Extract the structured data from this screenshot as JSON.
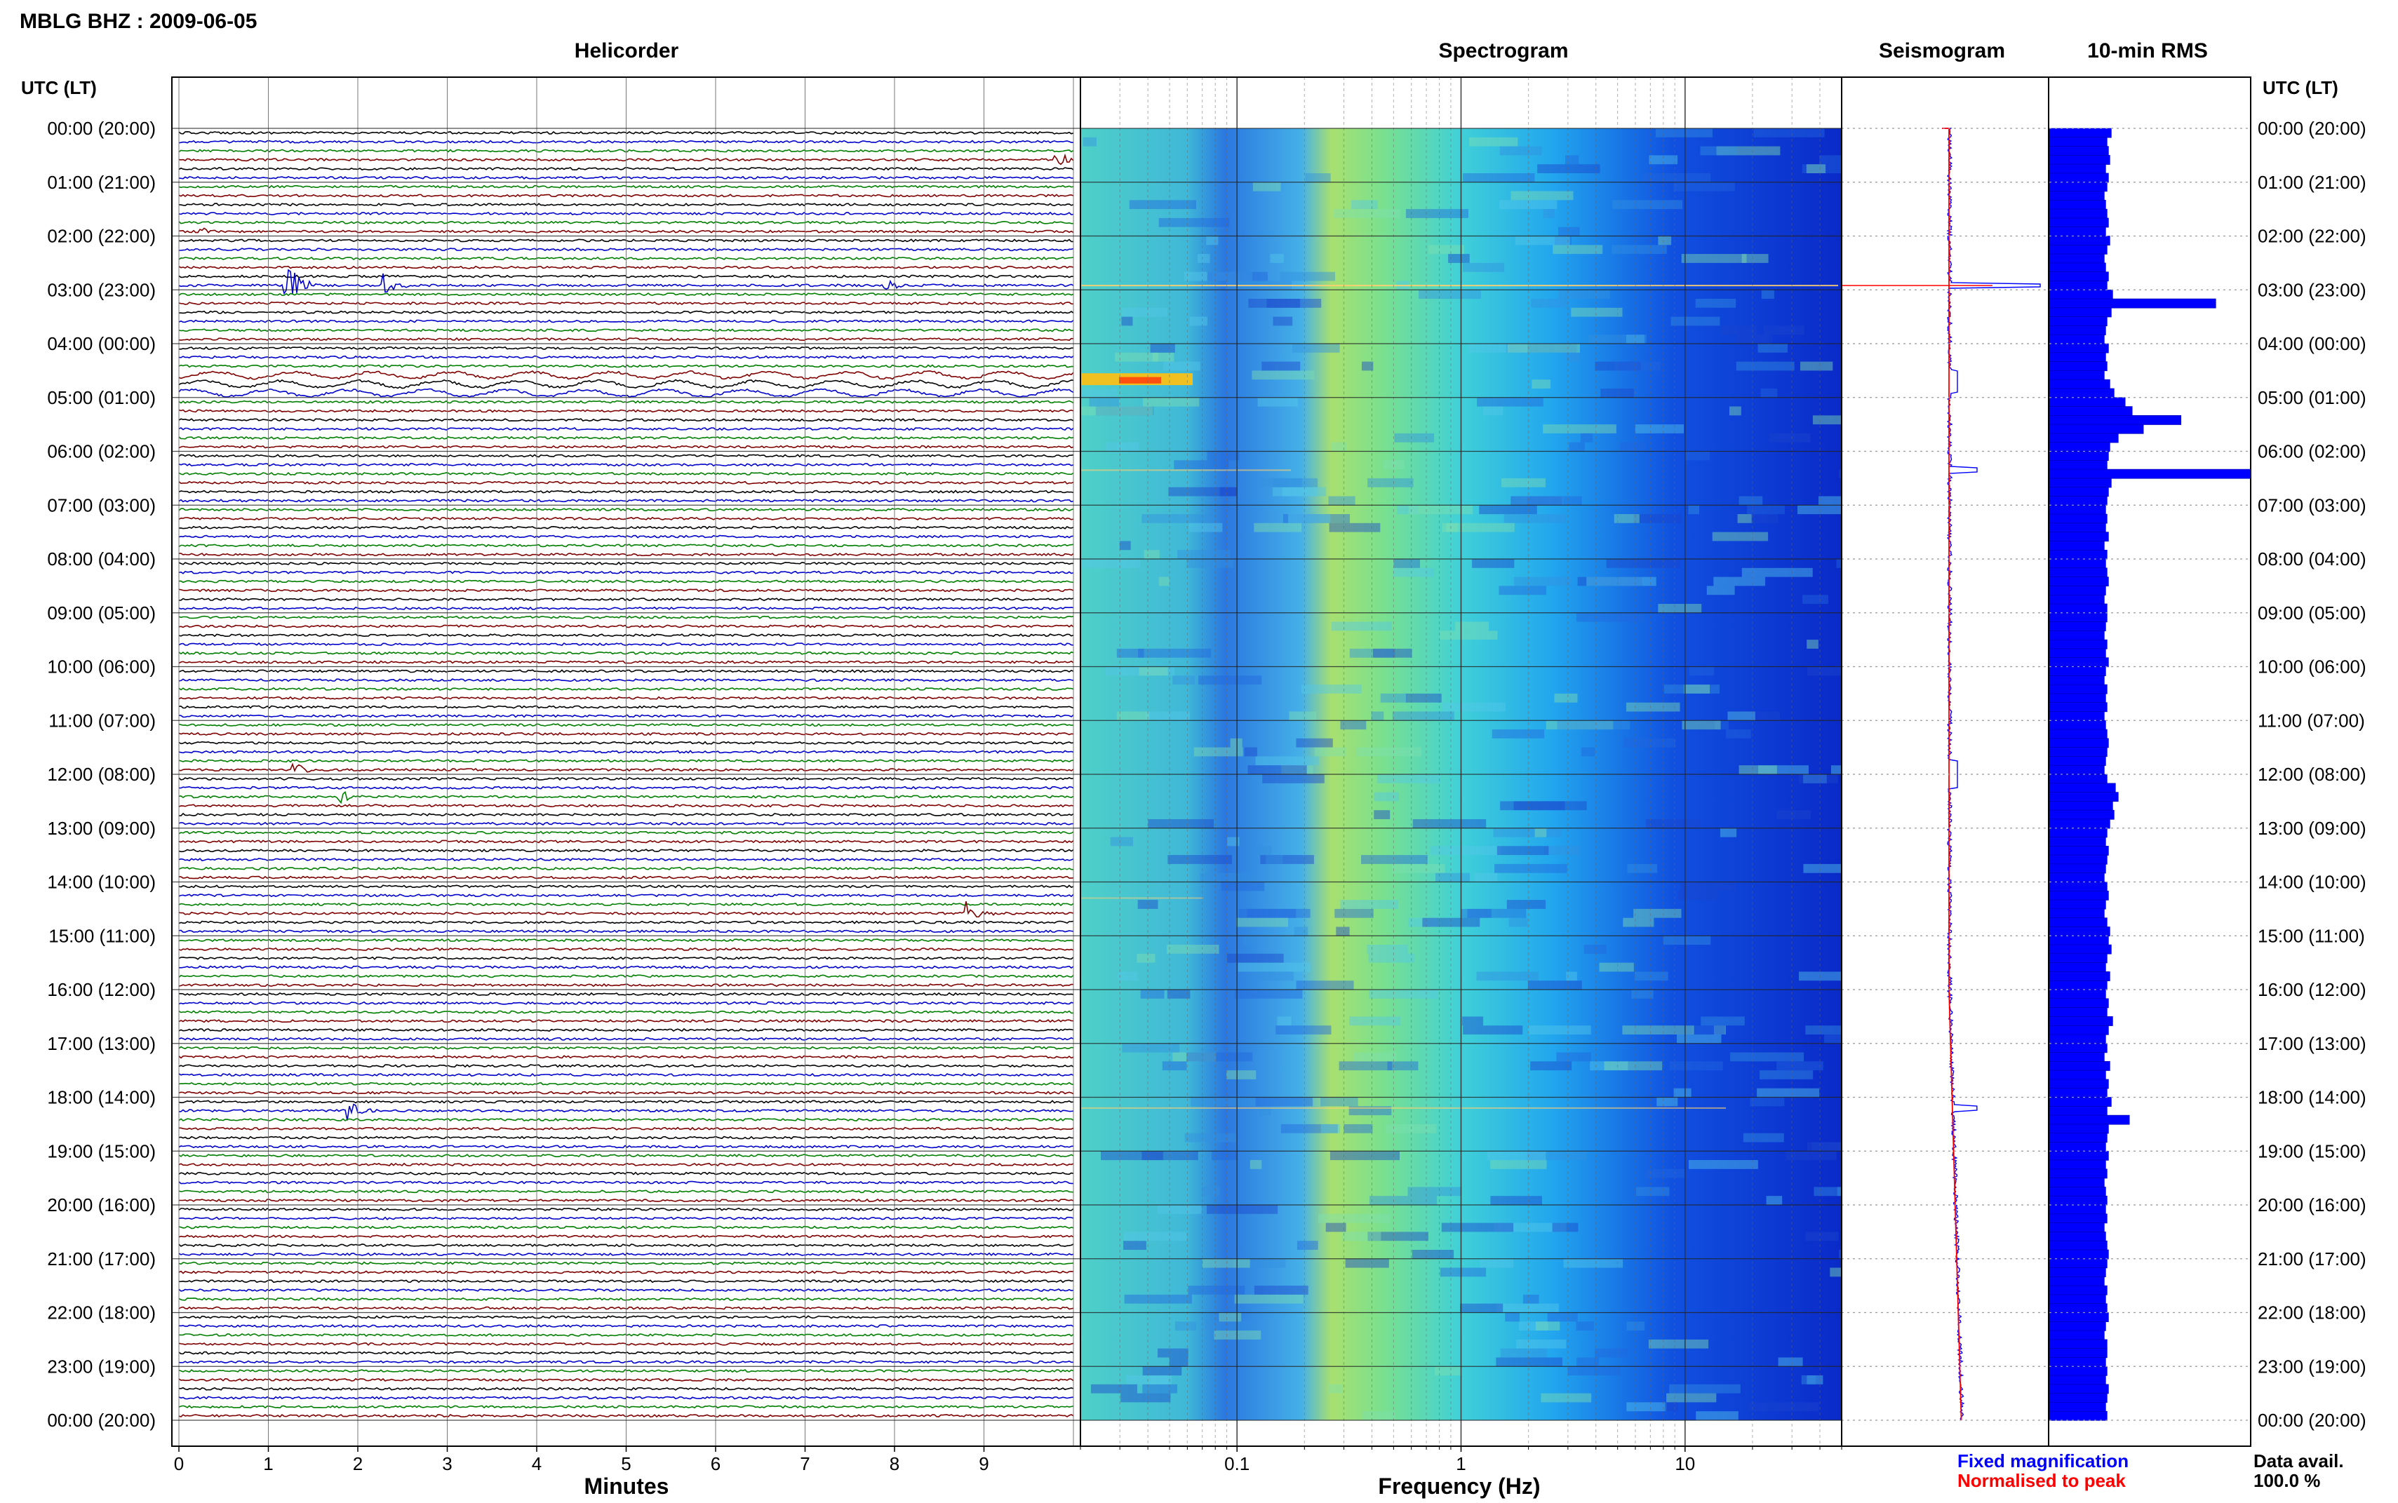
{
  "header": {
    "station_title": "MBLG BHZ : 2009-06-05"
  },
  "panels": {
    "helicorder": "Helicorder",
    "spectrogram": "Spectrogram",
    "seismogram": "Seismogram",
    "rms": "10-min RMS"
  },
  "time_axis_label": "UTC (LT)",
  "time_labels": [
    "00:00 (20:00)",
    "01:00 (21:00)",
    "02:00 (22:00)",
    "03:00 (23:00)",
    "04:00 (00:00)",
    "05:00 (01:00)",
    "06:00 (02:00)",
    "07:00 (03:00)",
    "08:00 (04:00)",
    "09:00 (05:00)",
    "10:00 (06:00)",
    "11:00 (07:00)",
    "12:00 (08:00)",
    "13:00 (09:00)",
    "14:00 (10:00)",
    "15:00 (11:00)",
    "16:00 (12:00)",
    "17:00 (13:00)",
    "18:00 (14:00)",
    "19:00 (15:00)",
    "20:00 (16:00)",
    "21:00 (17:00)",
    "22:00 (18:00)",
    "23:00 (19:00)",
    "00:00 (20:00)"
  ],
  "helicorder_axis": {
    "label": "Minutes",
    "ticks": [
      "0",
      "1",
      "2",
      "3",
      "4",
      "5",
      "6",
      "7",
      "8",
      "9"
    ]
  },
  "spectrogram_axis": {
    "label": "Frequency (Hz)",
    "ticks": [
      "0.1",
      "1",
      "10"
    ]
  },
  "legend": {
    "fixed": "Fixed magnification",
    "normalised": "Normalised to peak",
    "fixed_color": "#0000ff",
    "normalised_color": "#ff0000"
  },
  "data_availability": {
    "label": "Data avail.",
    "value": "100.0 %"
  },
  "colors": {
    "trace_cycle": [
      "#000000",
      "#0000cc",
      "#007f00",
      "#7f0000"
    ],
    "rms_bar": "#0000ff",
    "grid": "#999999"
  },
  "chart_data": [
    {
      "type": "line",
      "title": "Helicorder",
      "xlabel": "Minutes",
      "x_range": [
        0,
        10
      ],
      "rows_per_hour": 6,
      "traces_total": 144,
      "events": [
        {
          "hour": 0.55,
          "minute": 9.8,
          "amplitude": "medium"
        },
        {
          "hour": 1.8,
          "minute": 0.2,
          "amplitude": "small"
        },
        {
          "hour": 2.8,
          "minute": 1.2,
          "amplitude": "large"
        },
        {
          "hour": 2.8,
          "minute": 2.3,
          "amplitude": "medium"
        },
        {
          "hour": 2.8,
          "minute": 7.9,
          "amplitude": "small"
        },
        {
          "hour": 4.7,
          "minute": 0.0,
          "amplitude": "long-period swell"
        },
        {
          "hour": 11.8,
          "minute": 1.3,
          "amplitude": "small"
        },
        {
          "hour": 12.3,
          "minute": 1.8,
          "amplitude": "small"
        },
        {
          "hour": 14.5,
          "minute": 8.8,
          "amplitude": "medium"
        },
        {
          "hour": 18.1,
          "minute": 1.9,
          "amplitude": "medium"
        }
      ]
    },
    {
      "type": "heatmap",
      "title": "Spectrogram",
      "xlabel": "Frequency (Hz)",
      "x_scale": "log",
      "x_range": [
        0.02,
        50
      ],
      "y_range_hours": [
        0,
        24
      ],
      "colormap": "jet"
    },
    {
      "type": "line",
      "title": "Seismogram",
      "series": [
        {
          "name": "Fixed magnification",
          "color": "#0000ff"
        },
        {
          "name": "Normalised to peak",
          "color": "#ff0000"
        }
      ]
    },
    {
      "type": "bar",
      "title": "10-min RMS",
      "orientation": "horizontal",
      "bin_minutes": 10,
      "y_range_hours": [
        0,
        24
      ],
      "values": [
        0.45,
        0.42,
        0.43,
        0.44,
        0.41,
        0.43,
        0.42,
        0.4,
        0.41,
        0.42,
        0.43,
        0.41,
        0.44,
        0.42,
        0.4,
        0.41,
        0.43,
        0.42,
        0.46,
        1.2,
        0.45,
        0.42,
        0.41,
        0.4,
        0.43,
        0.41,
        0.42,
        0.4,
        0.44,
        0.47,
        0.55,
        0.6,
        0.95,
        0.68,
        0.5,
        0.44,
        0.43,
        0.42,
        1.45,
        0.45,
        0.43,
        0.42,
        0.41,
        0.42,
        0.41,
        0.43,
        0.4,
        0.42,
        0.41,
        0.42,
        0.43,
        0.41,
        0.4,
        0.42,
        0.42,
        0.41,
        0.4,
        0.42,
        0.41,
        0.43,
        0.41,
        0.4,
        0.42,
        0.41,
        0.42,
        0.4,
        0.41,
        0.42,
        0.43,
        0.42,
        0.41,
        0.4,
        0.42,
        0.48,
        0.5,
        0.46,
        0.47,
        0.44,
        0.42,
        0.41,
        0.43,
        0.42,
        0.41,
        0.4,
        0.42,
        0.43,
        0.41,
        0.4,
        0.42,
        0.44,
        0.43,
        0.45,
        0.42,
        0.41,
        0.44,
        0.42,
        0.41,
        0.43,
        0.42,
        0.46,
        0.43,
        0.41,
        0.42,
        0.4,
        0.44,
        0.41,
        0.43,
        0.42,
        0.45,
        0.42,
        0.58,
        0.43,
        0.42,
        0.41,
        0.43,
        0.41,
        0.42,
        0.4,
        0.41,
        0.42,
        0.41,
        0.42,
        0.4,
        0.41,
        0.42,
        0.43,
        0.42,
        0.41,
        0.4,
        0.42,
        0.41,
        0.42,
        0.43,
        0.41,
        0.4,
        0.42,
        0.42,
        0.41,
        0.42,
        0.41,
        0.43,
        0.42,
        0.41,
        0.42
      ]
    }
  ]
}
